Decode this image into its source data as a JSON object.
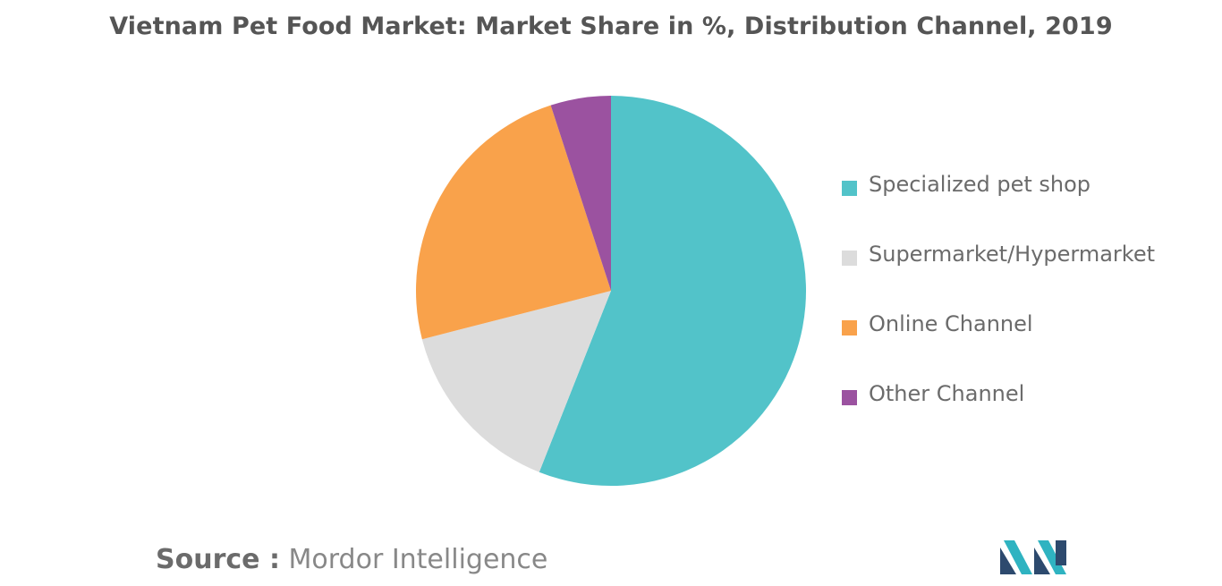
{
  "chart_data": {
    "type": "pie",
    "title": "Vietnam Pet Food Market: Market Share in %, Distribution Channel, 2019",
    "slices": [
      {
        "label": "Specialized pet shop",
        "value": 56,
        "color": "#52c3c9"
      },
      {
        "label": "Supermarket/Hypermarket",
        "value": 15,
        "color": "#dcdcdc"
      },
      {
        "label": "Online Channel",
        "value": 24,
        "color": "#f9a24b"
      },
      {
        "label": "Other Channel",
        "value": 5,
        "color": "#9b52a0"
      }
    ],
    "legend_position": "right"
  },
  "source": {
    "label": "Source :",
    "name": "Mordor Intelligence"
  },
  "logo": {
    "colors": [
      "#2d4a6e",
      "#2fb3c1"
    ]
  }
}
